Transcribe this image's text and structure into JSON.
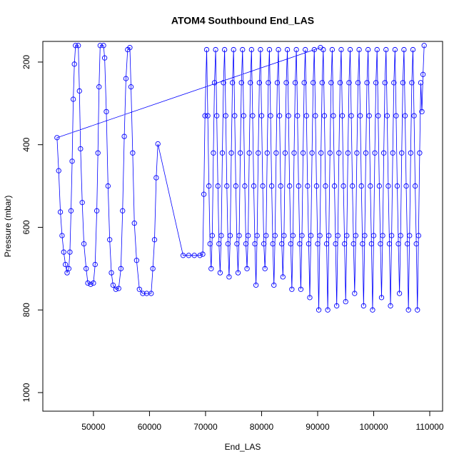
{
  "chart_data": {
    "type": "line",
    "markers": true,
    "title": "ATOM4 Southbound End_LAS",
    "xlabel": "End_LAS",
    "ylabel": "Pressure (mbar)",
    "color": "#0000ff",
    "xlim": [
      40970,
      112290
    ],
    "xticks": [
      50000,
      60000,
      70000,
      80000,
      90000,
      100000,
      110000
    ],
    "ylim": [
      1045,
      150
    ],
    "yticks": [
      200,
      400,
      600,
      800,
      1000
    ],
    "x": [
      90500,
      43500,
      43800,
      44100,
      44400,
      44700,
      45000,
      45300,
      45600,
      45800,
      46000,
      46200,
      46400,
      46600,
      46800,
      47300,
      47500,
      47700,
      48000,
      48300,
      48700,
      49000,
      49500,
      50000,
      50300,
      50600,
      50800,
      51000,
      51200,
      51800,
      52000,
      52300,
      52600,
      52900,
      53200,
      53500,
      54000,
      54500,
      54900,
      55200,
      55500,
      55800,
      56100,
      56500,
      56700,
      57000,
      57300,
      57700,
      58200,
      58800,
      59500,
      60300,
      60600,
      60900,
      61200,
      61500,
      66000,
      67000,
      68000,
      69000,
      69500,
      69700,
      69900,
      70200,
      70400,
      70600,
      70800,
      71000,
      71200,
      71400,
      71600,
      71800,
      72000,
      72200,
      72400,
      72600,
      72800,
      73000,
      73200,
      73400,
      73600,
      73800,
      74000,
      74200,
      74400,
      74600,
      74800,
      75000,
      75200,
      75400,
      75600,
      75800,
      76000,
      76200,
      76400,
      76600,
      76800,
      77000,
      77200,
      77400,
      77600,
      77800,
      78000,
      78200,
      78400,
      78600,
      78800,
      79000,
      79200,
      79400,
      79600,
      79800,
      80000,
      80200,
      80400,
      80600,
      80800,
      81000,
      81200,
      81400,
      81600,
      81800,
      82000,
      82200,
      82400,
      82600,
      82800,
      83000,
      83200,
      83400,
      83600,
      83800,
      84000,
      84200,
      84400,
      84600,
      84800,
      85000,
      85200,
      85400,
      85600,
      85800,
      86000,
      86200,
      86400,
      86600,
      86800,
      87000,
      87200,
      87400,
      87600,
      87800,
      88000,
      88200,
      88400,
      88600,
      88800,
      89000,
      89200,
      89400,
      89600,
      89800,
      90000,
      90200,
      90400,
      90600,
      90800,
      91000,
      91200,
      91400,
      91600,
      91800,
      92000,
      92200,
      92400,
      92600,
      92800,
      93000,
      93200,
      93400,
      93600,
      93800,
      94000,
      94200,
      94400,
      94600,
      94800,
      95000,
      95200,
      95400,
      95600,
      95800,
      96000,
      96200,
      96400,
      96600,
      96800,
      97000,
      97200,
      97400,
      97600,
      97800,
      98000,
      98200,
      98400,
      98600,
      98800,
      99000,
      99200,
      99400,
      99600,
      99800,
      100000,
      100200,
      100400,
      100600,
      100800,
      101000,
      101200,
      101400,
      101600,
      101800,
      102000,
      102200,
      102400,
      102600,
      102800,
      103000,
      103200,
      103400,
      103600,
      103800,
      104000,
      104200,
      104400,
      104600,
      104800,
      105000,
      105200,
      105400,
      105600,
      105800,
      106000,
      106200,
      106400,
      106600,
      106800,
      107000,
      107200,
      107400,
      107600,
      107800,
      108000,
      108200,
      108400,
      108600,
      108800,
      109000
    ],
    "y": [
      165,
      383,
      463,
      563,
      620,
      660,
      690,
      710,
      700,
      660,
      560,
      440,
      290,
      205,
      160,
      160,
      270,
      410,
      540,
      640,
      700,
      735,
      738,
      735,
      690,
      560,
      420,
      260,
      160,
      160,
      190,
      320,
      500,
      630,
      710,
      740,
      750,
      748,
      700,
      560,
      380,
      240,
      170,
      165,
      260,
      420,
      590,
      680,
      750,
      760,
      760,
      760,
      700,
      630,
      480,
      398,
      668,
      668,
      668,
      668,
      665,
      520,
      330,
      170,
      330,
      500,
      640,
      700,
      620,
      420,
      250,
      170,
      330,
      500,
      640,
      710,
      620,
      420,
      250,
      170,
      330,
      500,
      640,
      720,
      620,
      420,
      250,
      170,
      330,
      500,
      640,
      710,
      620,
      420,
      250,
      170,
      330,
      500,
      640,
      700,
      620,
      420,
      250,
      170,
      330,
      500,
      640,
      740,
      620,
      420,
      250,
      170,
      330,
      500,
      640,
      700,
      620,
      420,
      250,
      170,
      330,
      500,
      640,
      740,
      620,
      420,
      250,
      170,
      330,
      500,
      640,
      720,
      620,
      420,
      250,
      170,
      330,
      500,
      640,
      750,
      620,
      420,
      250,
      170,
      330,
      500,
      640,
      750,
      620,
      420,
      250,
      170,
      330,
      500,
      640,
      770,
      620,
      420,
      250,
      170,
      330,
      500,
      640,
      800,
      620,
      420,
      250,
      170,
      330,
      500,
      640,
      800,
      620,
      420,
      250,
      170,
      330,
      500,
      640,
      790,
      620,
      420,
      250,
      170,
      330,
      500,
      640,
      780,
      620,
      420,
      250,
      170,
      330,
      500,
      640,
      760,
      620,
      420,
      250,
      170,
      330,
      500,
      640,
      790,
      620,
      420,
      250,
      170,
      330,
      500,
      640,
      800,
      620,
      420,
      250,
      170,
      330,
      500,
      640,
      770,
      620,
      420,
      250,
      170,
      330,
      500,
      640,
      790,
      620,
      420,
      250,
      170,
      330,
      500,
      640,
      760,
      620,
      420,
      250,
      170,
      330,
      500,
      640,
      800,
      620,
      420,
      250,
      170,
      330,
      500,
      640,
      800,
      620,
      420,
      250,
      320,
      230,
      160
    ]
  }
}
